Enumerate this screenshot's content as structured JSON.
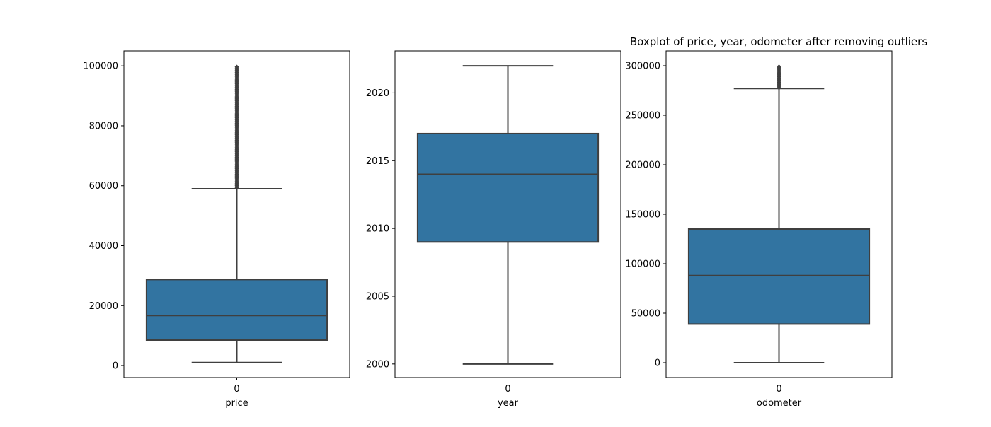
{
  "title": "Boxplot of price, year, odometer after removing outliers",
  "box_color": "#3274a1",
  "line_color": "#3f3f3f",
  "chart_data": [
    {
      "type": "box",
      "xlabel": "price",
      "categories": [
        "0"
      ],
      "ylim": [
        -4000,
        105000
      ],
      "yticks": [
        0,
        20000,
        40000,
        60000,
        80000,
        100000
      ],
      "ytick_labels": [
        "0",
        "20000",
        "40000",
        "60000",
        "80000",
        "100000"
      ],
      "stats": {
        "whislo": 1000,
        "q1": 8500,
        "med": 16700,
        "q3": 28700,
        "whishi": 59000
      },
      "fliers_range": [
        59300,
        100000
      ]
    },
    {
      "type": "box",
      "xlabel": "year",
      "categories": [
        "0"
      ],
      "ylim": [
        1999.0,
        2023.1
      ],
      "yticks": [
        2000,
        2005,
        2010,
        2015,
        2020
      ],
      "ytick_labels": [
        "2000",
        "2005",
        "2010",
        "2015",
        "2020"
      ],
      "stats": {
        "whislo": 2000,
        "q1": 2009,
        "med": 2014,
        "q3": 2017,
        "whishi": 2022
      },
      "fliers_range": []
    },
    {
      "type": "box",
      "xlabel": "odometer",
      "categories": [
        "0"
      ],
      "ylim": [
        -15000,
        315000
      ],
      "yticks": [
        0,
        50000,
        100000,
        150000,
        200000,
        250000,
        300000
      ],
      "ytick_labels": [
        "0",
        "50000",
        "100000",
        "150000",
        "200000",
        "250000",
        "300000"
      ],
      "stats": {
        "whislo": 0,
        "q1": 39000,
        "med": 88000,
        "q3": 135000,
        "whishi": 277000
      },
      "fliers_range": [
        277500,
        300000
      ]
    }
  ]
}
